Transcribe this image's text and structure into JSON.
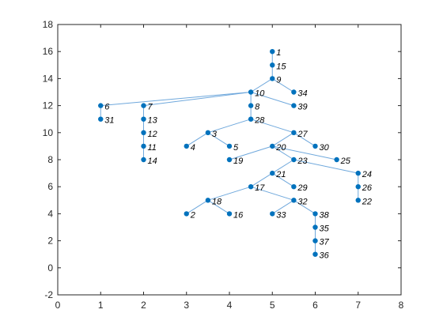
{
  "chart_data": {
    "type": "scatter",
    "title": "",
    "xlabel": "",
    "ylabel": "",
    "xlim": [
      0,
      8
    ],
    "ylim": [
      -2,
      18
    ],
    "xticks": [
      0,
      1,
      2,
      3,
      4,
      5,
      6,
      7,
      8
    ],
    "yticks": [
      -2,
      0,
      2,
      4,
      6,
      8,
      10,
      12,
      14,
      16,
      18
    ],
    "grid": false,
    "colors": {
      "node": "#0072bd",
      "edge": "#6fa8dc",
      "axis": "#262626"
    },
    "nodes": [
      {
        "id": "1",
        "x": 5,
        "y": 16
      },
      {
        "id": "15",
        "x": 5,
        "y": 15
      },
      {
        "id": "9",
        "x": 5,
        "y": 14
      },
      {
        "id": "10",
        "x": 4.5,
        "y": 13
      },
      {
        "id": "34",
        "x": 5.5,
        "y": 13
      },
      {
        "id": "6",
        "x": 1,
        "y": 12
      },
      {
        "id": "7",
        "x": 2,
        "y": 12
      },
      {
        "id": "8",
        "x": 4.5,
        "y": 12
      },
      {
        "id": "39",
        "x": 5.5,
        "y": 12
      },
      {
        "id": "31",
        "x": 1,
        "y": 11
      },
      {
        "id": "13",
        "x": 2,
        "y": 11
      },
      {
        "id": "28",
        "x": 4.5,
        "y": 11
      },
      {
        "id": "12",
        "x": 2,
        "y": 10
      },
      {
        "id": "3",
        "x": 3.5,
        "y": 10
      },
      {
        "id": "27",
        "x": 5.5,
        "y": 10
      },
      {
        "id": "11",
        "x": 2,
        "y": 9
      },
      {
        "id": "4",
        "x": 3,
        "y": 9
      },
      {
        "id": "5",
        "x": 4,
        "y": 9
      },
      {
        "id": "20",
        "x": 5,
        "y": 9
      },
      {
        "id": "30",
        "x": 6,
        "y": 9
      },
      {
        "id": "14",
        "x": 2,
        "y": 8
      },
      {
        "id": "19",
        "x": 4,
        "y": 8
      },
      {
        "id": "23",
        "x": 5.5,
        "y": 8
      },
      {
        "id": "25",
        "x": 6.5,
        "y": 8
      },
      {
        "id": "21",
        "x": 5,
        "y": 7
      },
      {
        "id": "24",
        "x": 7,
        "y": 7
      },
      {
        "id": "17",
        "x": 4.5,
        "y": 6
      },
      {
        "id": "29",
        "x": 5.5,
        "y": 6
      },
      {
        "id": "26",
        "x": 7,
        "y": 6
      },
      {
        "id": "18",
        "x": 3.5,
        "y": 5
      },
      {
        "id": "32",
        "x": 5.5,
        "y": 5
      },
      {
        "id": "22",
        "x": 7,
        "y": 5
      },
      {
        "id": "2",
        "x": 3,
        "y": 4
      },
      {
        "id": "16",
        "x": 4,
        "y": 4
      },
      {
        "id": "33",
        "x": 5,
        "y": 4
      },
      {
        "id": "38",
        "x": 6,
        "y": 4
      },
      {
        "id": "35",
        "x": 6,
        "y": 3
      },
      {
        "id": "37",
        "x": 6,
        "y": 2
      },
      {
        "id": "36",
        "x": 6,
        "y": 1
      }
    ],
    "edges": [
      [
        "1",
        "15"
      ],
      [
        "15",
        "9"
      ],
      [
        "9",
        "10"
      ],
      [
        "9",
        "34"
      ],
      [
        "10",
        "6"
      ],
      [
        "10",
        "7"
      ],
      [
        "10",
        "8"
      ],
      [
        "10",
        "39"
      ],
      [
        "6",
        "31"
      ],
      [
        "7",
        "13"
      ],
      [
        "13",
        "12"
      ],
      [
        "12",
        "11"
      ],
      [
        "11",
        "14"
      ],
      [
        "8",
        "28"
      ],
      [
        "28",
        "3"
      ],
      [
        "28",
        "27"
      ],
      [
        "3",
        "4"
      ],
      [
        "3",
        "5"
      ],
      [
        "27",
        "20"
      ],
      [
        "27",
        "30"
      ],
      [
        "20",
        "19"
      ],
      [
        "20",
        "23"
      ],
      [
        "20",
        "25"
      ],
      [
        "23",
        "21"
      ],
      [
        "23",
        "24"
      ],
      [
        "24",
        "26"
      ],
      [
        "26",
        "22"
      ],
      [
        "21",
        "17"
      ],
      [
        "21",
        "29"
      ],
      [
        "17",
        "18"
      ],
      [
        "17",
        "32"
      ],
      [
        "18",
        "2"
      ],
      [
        "18",
        "16"
      ],
      [
        "32",
        "33"
      ],
      [
        "32",
        "38"
      ],
      [
        "38",
        "35"
      ],
      [
        "35",
        "37"
      ],
      [
        "37",
        "36"
      ]
    ]
  }
}
